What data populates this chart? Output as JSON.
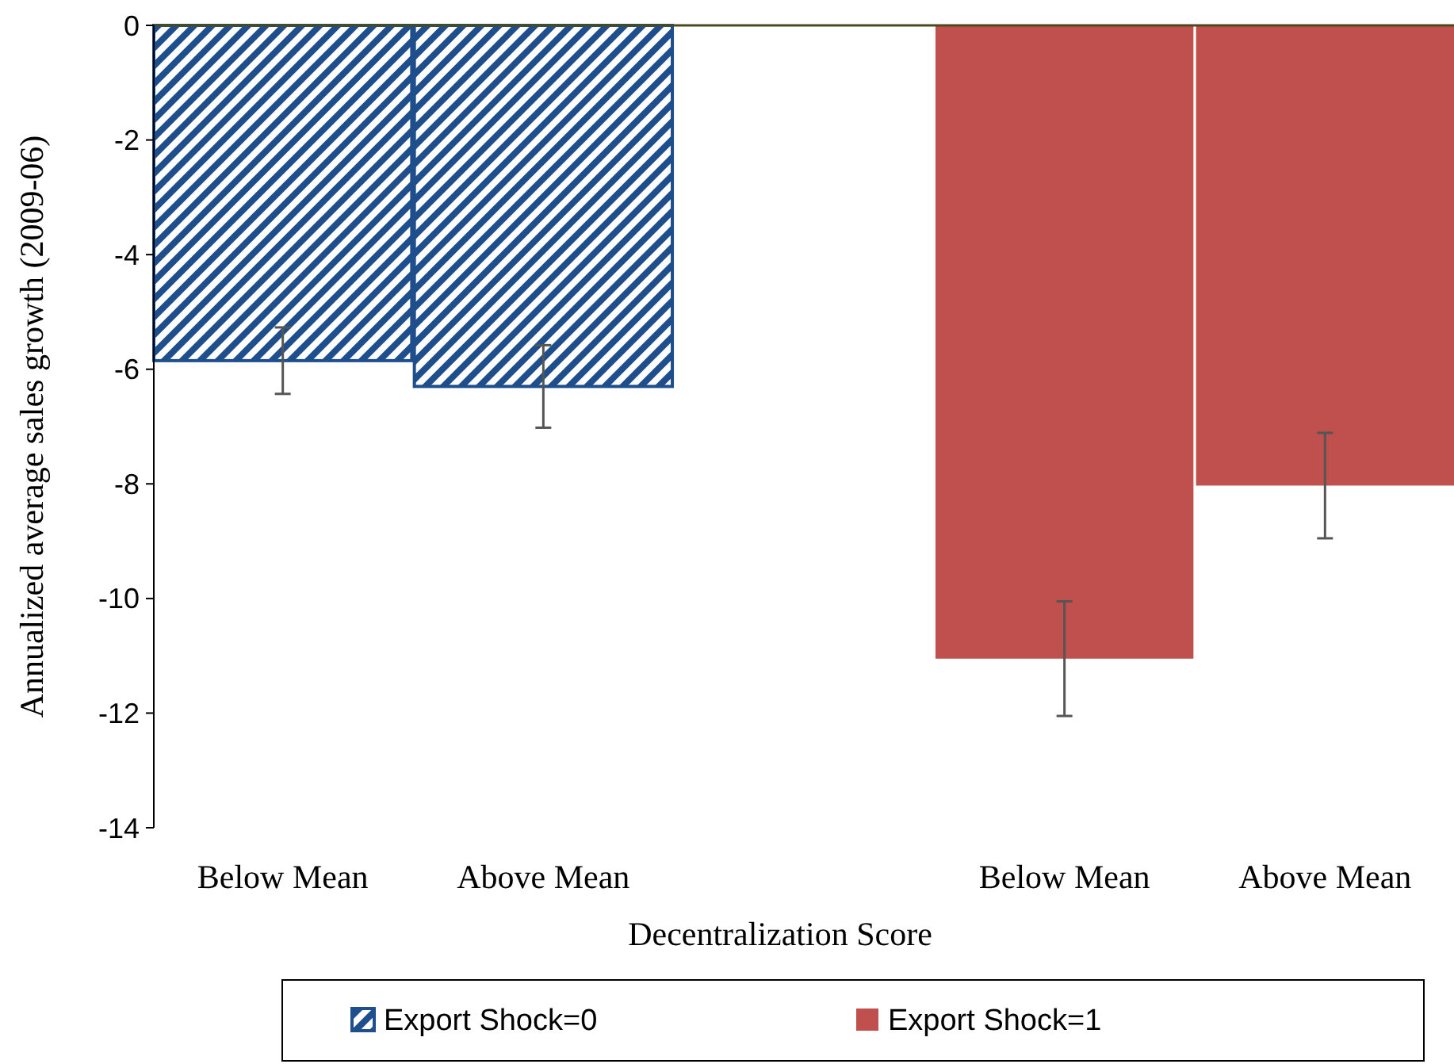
{
  "chart_data": {
    "type": "bar",
    "xlabel": "Decentralization Score",
    "ylabel": "Annualized average sales growth (2009-06)",
    "categories": [
      "Below Mean",
      "Above Mean",
      null,
      "Below Mean",
      "Above Mean"
    ],
    "series": [
      {
        "name": "Export Shock=0",
        "color": "#1f4e8c",
        "values": [
          -5.85,
          -6.3,
          null,
          null,
          null
        ],
        "errors": [
          0.58,
          0.72,
          null,
          null,
          null
        ]
      },
      {
        "name": "Export Shock=1",
        "color": "#c0504d",
        "values": [
          null,
          null,
          null,
          -11.05,
          -8.03
        ],
        "errors": [
          null,
          null,
          null,
          1.0,
          0.92
        ]
      }
    ],
    "ylim": [
      -14,
      0
    ],
    "yticks": [
      -14,
      -12,
      -10,
      -8,
      -6,
      -4,
      -2,
      0
    ],
    "grid": false,
    "legend": "bottom"
  }
}
